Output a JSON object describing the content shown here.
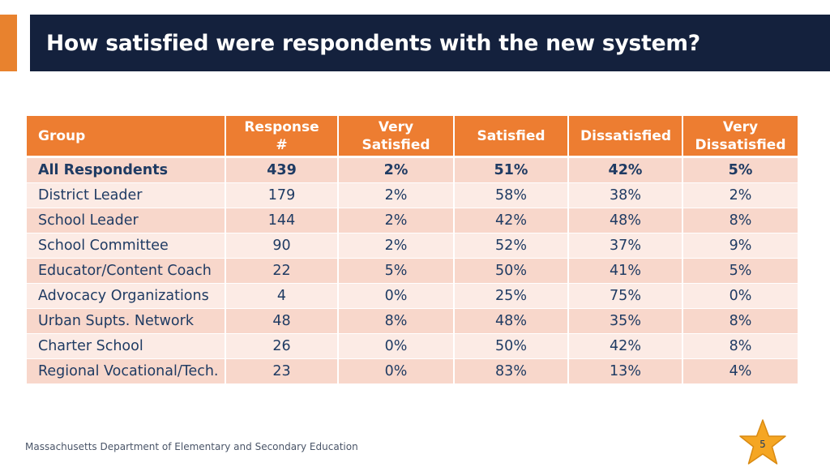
{
  "slide": {
    "title": "How satisfied were respondents with the new system?",
    "footer": "Massachusetts Department of Elementary and Secondary Education",
    "page_number": "5"
  },
  "colors": {
    "title_bg": "#14213d",
    "accent": "#e8822e",
    "header_bg": "#ed7d31",
    "row_odd": "#f8d7cb",
    "row_even": "#fcebe5",
    "star_fill": "#f5a623"
  },
  "table": {
    "headers": {
      "group": "Group",
      "response": "Response #",
      "very_satisfied_1": "Very",
      "very_satisfied_2": "Satisfied",
      "satisfied": "Satisfied",
      "dissatisfied": "Dissatisfied",
      "very_dissatisfied_1": "Very",
      "very_dissatisfied_2": "Dissatisfied"
    },
    "rows": [
      {
        "group": "All Respondents",
        "response": "439",
        "very_satisfied": "2%",
        "satisfied": "51%",
        "dissatisfied": "42%",
        "very_dissatisfied": "5%"
      },
      {
        "group": "District Leader",
        "response": "179",
        "very_satisfied": "2%",
        "satisfied": "58%",
        "dissatisfied": "38%",
        "very_dissatisfied": "2%"
      },
      {
        "group": "School Leader",
        "response": "144",
        "very_satisfied": "2%",
        "satisfied": "42%",
        "dissatisfied": "48%",
        "very_dissatisfied": "8%"
      },
      {
        "group": "School Committee",
        "response": "90",
        "very_satisfied": "2%",
        "satisfied": "52%",
        "dissatisfied": "37%",
        "very_dissatisfied": "9%"
      },
      {
        "group": "Educator/Content Coach",
        "response": "22",
        "very_satisfied": "5%",
        "satisfied": "50%",
        "dissatisfied": "41%",
        "very_dissatisfied": "5%"
      },
      {
        "group": "Advocacy Organizations",
        "response": "4",
        "very_satisfied": "0%",
        "satisfied": "25%",
        "dissatisfied": "75%",
        "very_dissatisfied": "0%"
      },
      {
        "group": "Urban Supts. Network",
        "response": "48",
        "very_satisfied": "8%",
        "satisfied": "48%",
        "dissatisfied": "35%",
        "very_dissatisfied": "8%"
      },
      {
        "group": "Charter School",
        "response": "26",
        "very_satisfied": "0%",
        "satisfied": "50%",
        "dissatisfied": "42%",
        "very_dissatisfied": "8%"
      },
      {
        "group": "Regional Vocational/Tech.",
        "response": "23",
        "very_satisfied": "0%",
        "satisfied": "83%",
        "dissatisfied": "13%",
        "very_dissatisfied": "4%"
      }
    ]
  }
}
